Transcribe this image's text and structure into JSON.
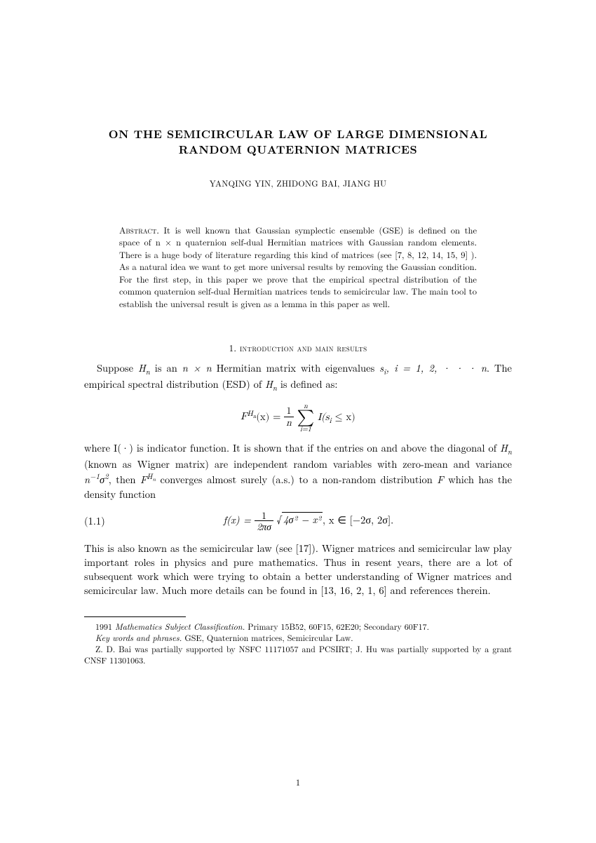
{
  "title": "ON THE SEMICIRCULAR LAW OF LARGE DIMENSIONAL RANDOM QUATERNION MATRICES",
  "authors": "YANQING YIN, ZHIDONG BAI,   JIANG HU",
  "abstract_label": "Abstract.",
  "abstract_text": "It is well known that Gaussian symplectic ensemble (GSE) is defined on the space of n × n quaternion self-dual Hermitian matrices with Gaussian random elements. There is a huge body of literature regarding this kind of matrices (see [7, 8, 12, 14, 15, 9] ). As a natural idea we want to get more universal results by removing the Gaussian condition. For the first step, in this paper we prove that the empirical spectral distribution of the common quaternion self-dual Hermitian matrices tends to semicircular law. The main tool to establish the universal result is given as a lemma in this paper as well.",
  "section_number": "1.",
  "section_title": "introduction and main results",
  "para1_a": "Suppose ",
  "para1_b": " is an ",
  "para1_c": " Hermitian matrix with eigenvalues ",
  "para1_d": ". The empirical spectral distribution (ESD) of ",
  "para1_e": " is defined as:",
  "eq1_lhs_base": "F",
  "eq1_lhs_sup": "H",
  "eq1_lhs_subn": "n",
  "eq1_lhs_arg": "(x) = ",
  "eq1_frac_num": "1",
  "eq1_frac_den": "n",
  "eq1_sum_top": "n",
  "eq1_sum_bot": "i=1",
  "eq1_tail": " I(s",
  "eq1_tail_sub": "i",
  "eq1_tail2": " ≤ x)",
  "para2_a": "where I(·) is indicator function. It is shown that if the entries on and above the diagonal of ",
  "para2_b": " (known as Wigner matrix) are independent random variables with zero-mean and variance ",
  "para2_c": ", then ",
  "para2_d": " converges almost surely (a.s.) to a non-random distribution ",
  "para2_e": " which has the density function",
  "eq2_number": "(1.1)",
  "eq2_lhs": "f(x) = ",
  "eq2_frac_num": "1",
  "eq2_frac_den": "2πσ",
  "eq2_sqrt": "4σ² − x²",
  "eq2_tail": ",  x ∈ [−2σ, 2σ].",
  "para3": "This is also known as the semicircular law (see [17]). Wigner matrices and semicircular law play important roles in physics and pure mathematics. Thus in resent years, there are a lot of subsequent work which were trying to obtain a better understanding of Wigner matrices and semicircular law. Much more details can be found in [13, 16, 2, 1, 6] and references therein.",
  "footnote1_a": "1991 ",
  "footnote1_b": "Mathematics Subject Classification.",
  "footnote1_c": " Primary 15B52, 60F15, 62E20; Secondary 60F17.",
  "footnote2_a": "Key words and phrases.",
  "footnote2_b": " GSE, Quaternion matrices, Semicircular Law.",
  "footnote3": "Z. D. Bai was partially supported by NSFC 11171057 and PCSIRT; J. Hu was partially supported by a grant CNSF 11301063.",
  "page_number": "1"
}
